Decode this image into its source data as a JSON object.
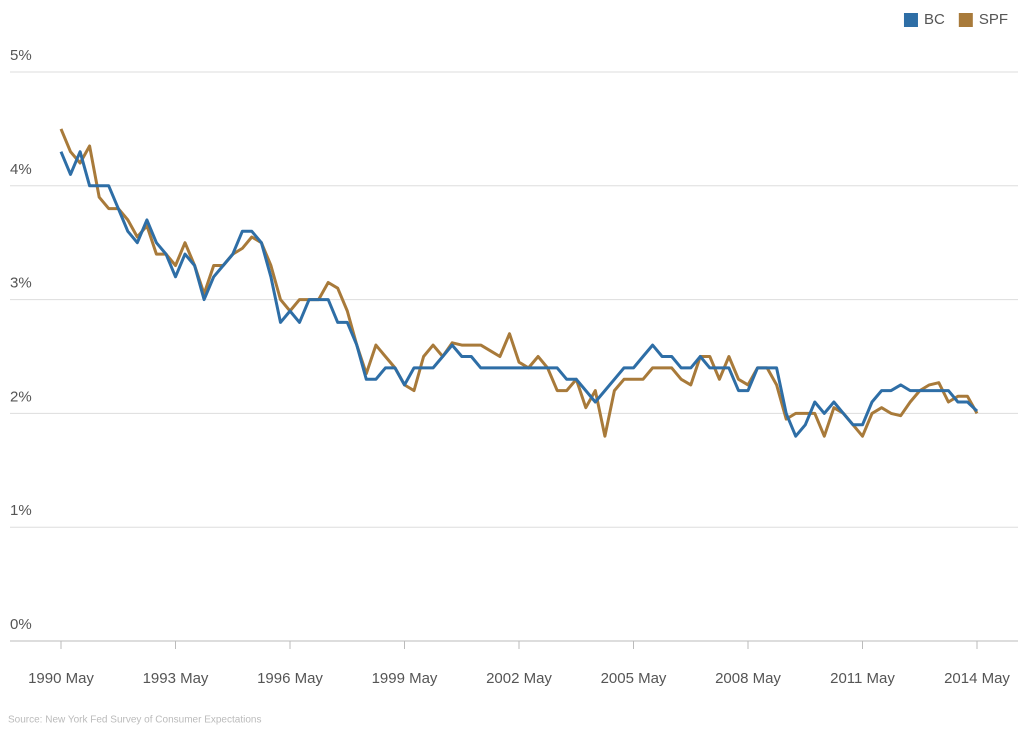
{
  "chart_data": {
    "type": "line",
    "categories": [
      "1990 May",
      null,
      null,
      null,
      null,
      null,
      null,
      null,
      null,
      null,
      null,
      null,
      "1993 May",
      null,
      null,
      null,
      null,
      null,
      null,
      null,
      null,
      null,
      null,
      null,
      "1996 May",
      null,
      null,
      null,
      null,
      null,
      null,
      null,
      null,
      null,
      null,
      null,
      "1999 May",
      null,
      null,
      null,
      null,
      null,
      null,
      null,
      null,
      null,
      null,
      null,
      "2002 May",
      null,
      null,
      null,
      null,
      null,
      null,
      null,
      null,
      null,
      null,
      null,
      "2005 May",
      null,
      null,
      null,
      null,
      null,
      null,
      null,
      null,
      null,
      null,
      null,
      "2008 May",
      null,
      null,
      null,
      null,
      null,
      null,
      null,
      null,
      null,
      null,
      null,
      "2011 May",
      null,
      null,
      null,
      null,
      null,
      null,
      null,
      null,
      null,
      null,
      null,
      "2014 May"
    ],
    "series": [
      {
        "name": "BC",
        "color": "#2e6ea6",
        "values": [
          4.3,
          4.1,
          4.3,
          4.0,
          4.0,
          4.0,
          3.8,
          3.6,
          3.5,
          3.7,
          3.5,
          3.4,
          3.2,
          3.4,
          3.3,
          3.0,
          3.2,
          3.3,
          3.4,
          3.6,
          3.6,
          3.5,
          3.2,
          2.8,
          2.9,
          2.8,
          3.0,
          3.0,
          3.0,
          2.8,
          2.8,
          2.6,
          2.3,
          2.3,
          2.4,
          2.4,
          2.25,
          2.4,
          2.4,
          2.4,
          2.5,
          2.6,
          2.5,
          2.5,
          2.4,
          2.4,
          2.4,
          2.4,
          2.4,
          2.4,
          2.4,
          2.4,
          2.4,
          2.3,
          2.3,
          2.2,
          2.1,
          2.2,
          2.3,
          2.4,
          2.4,
          2.5,
          2.6,
          2.5,
          2.5,
          2.4,
          2.4,
          2.5,
          2.4,
          2.4,
          2.4,
          2.2,
          2.2,
          2.4,
          2.4,
          2.4,
          2.0,
          1.8,
          1.9,
          2.1,
          2.0,
          2.1,
          2.0,
          1.9,
          1.9,
          2.1,
          2.2,
          2.2,
          2.25,
          2.2,
          2.2,
          2.2,
          2.2,
          2.2,
          2.1,
          2.1,
          2.02
        ]
      },
      {
        "name": "SPF",
        "color": "#a87a3a",
        "values": [
          4.5,
          4.3,
          4.2,
          4.35,
          3.9,
          3.8,
          3.8,
          3.7,
          3.55,
          3.65,
          3.4,
          3.4,
          3.3,
          3.5,
          3.3,
          3.05,
          3.3,
          3.3,
          3.4,
          3.45,
          3.55,
          3.5,
          3.3,
          3.0,
          2.9,
          3.0,
          3.0,
          3.0,
          3.15,
          3.1,
          2.9,
          2.6,
          2.35,
          2.6,
          2.5,
          2.4,
          2.25,
          2.2,
          2.5,
          2.6,
          2.5,
          2.62,
          2.6,
          2.6,
          2.6,
          2.55,
          2.5,
          2.7,
          2.45,
          2.4,
          2.5,
          2.4,
          2.2,
          2.2,
          2.3,
          2.05,
          2.2,
          1.8,
          2.2,
          2.3,
          2.3,
          2.3,
          2.4,
          2.4,
          2.4,
          2.3,
          2.25,
          2.5,
          2.5,
          2.3,
          2.5,
          2.3,
          2.25,
          2.4,
          2.4,
          2.25,
          1.95,
          2.0,
          2.0,
          2.0,
          1.8,
          2.05,
          2.0,
          1.9,
          1.8,
          2.0,
          2.05,
          2.0,
          1.98,
          2.1,
          2.2,
          2.25,
          2.27,
          2.1,
          2.15,
          2.15,
          2.0
        ]
      }
    ],
    "ylim": [
      0,
      5
    ],
    "yticks": [
      {
        "value": 0,
        "label": "0%"
      },
      {
        "value": 1,
        "label": "1%"
      },
      {
        "value": 2,
        "label": "2%"
      },
      {
        "value": 3,
        "label": "3%"
      },
      {
        "value": 4,
        "label": "4%"
      },
      {
        "value": 5,
        "label": "5%"
      }
    ],
    "grid": true,
    "legend": "top-right",
    "source": "Source: New York Fed Survey of Consumer Expectations"
  }
}
